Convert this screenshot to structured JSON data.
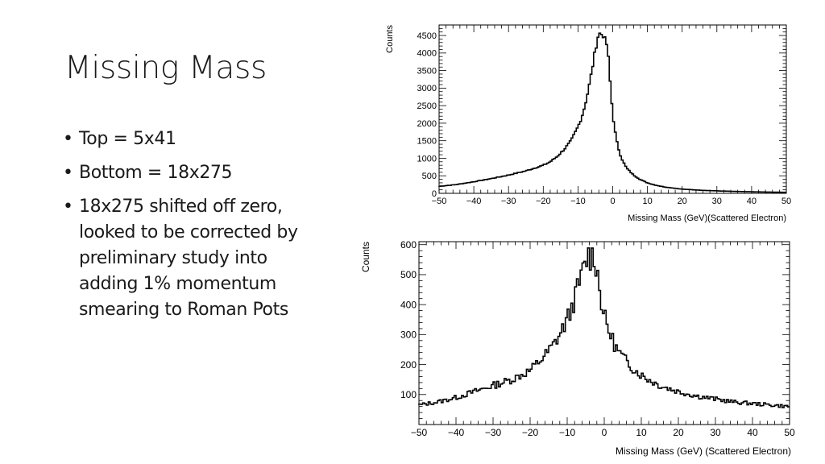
{
  "slide": {
    "title": "Missing Mass",
    "bullets": [
      "Top = 5x41",
      "Bottom = 18x275",
      "18x275 shifted off zero, looked to be corrected by preliminary study into adding 1% momentum smearing to Roman Pots"
    ]
  },
  "chart_data": [
    {
      "type": "line",
      "title": "",
      "xlabel": "Missing Mass (GeV)(Scattered Electron)",
      "ylabel": "Counts",
      "xlim": [
        -50,
        50
      ],
      "ylim": [
        0,
        4800
      ],
      "xticks": [
        -50,
        -40,
        -30,
        -20,
        -10,
        0,
        10,
        20,
        30,
        40,
        50
      ],
      "yticks": [
        0,
        500,
        1000,
        1500,
        2000,
        2500,
        3000,
        3500,
        4000,
        4500
      ],
      "grid": false,
      "legend": "none",
      "style": "step",
      "line_color": "#000000",
      "x": [
        -50,
        -45,
        -40,
        -35,
        -30,
        -25,
        -20,
        -18,
        -16,
        -14,
        -12,
        -10,
        -9,
        -8,
        -7,
        -6,
        -5,
        -4.5,
        -4,
        -3.5,
        -3,
        -2.5,
        -2,
        -1.5,
        -1,
        0,
        1,
        2,
        3,
        4,
        6,
        8,
        10,
        12,
        15,
        20,
        25,
        30,
        35,
        40,
        45,
        50
      ],
      "y": [
        200,
        250,
        330,
        420,
        520,
        640,
        800,
        900,
        1050,
        1250,
        1500,
        1900,
        2150,
        2500,
        2950,
        3500,
        4100,
        4350,
        4600,
        4500,
        4580,
        4450,
        4300,
        4200,
        3500,
        2250,
        1550,
        1150,
        900,
        720,
        520,
        390,
        300,
        240,
        180,
        120,
        90,
        70,
        55,
        45,
        35,
        30
      ]
    },
    {
      "type": "line",
      "title": "",
      "xlabel": "Missing Mass (GeV) (Scattered Electron)",
      "ylabel": "Counts",
      "xlim": [
        -50,
        50
      ],
      "ylim": [
        0,
        610
      ],
      "xticks": [
        -50,
        -40,
        -30,
        -20,
        -10,
        0,
        10,
        20,
        30,
        40,
        50
      ],
      "yticks": [
        100,
        200,
        300,
        400,
        500,
        600
      ],
      "grid": false,
      "legend": "none",
      "style": "step",
      "line_color": "#000000",
      "x": [
        -50,
        -45,
        -40,
        -35,
        -30,
        -25,
        -20,
        -18,
        -16,
        -14,
        -12,
        -10,
        -9,
        -8,
        -7,
        -6,
        -5,
        -4.5,
        -4,
        -3.5,
        -3,
        -2.5,
        -2,
        -1.5,
        -1,
        0,
        1,
        2,
        3,
        4,
        6,
        8,
        10,
        12,
        15,
        20,
        25,
        30,
        35,
        40,
        45,
        50
      ],
      "y": [
        65,
        75,
        90,
        110,
        130,
        150,
        180,
        205,
        230,
        260,
        300,
        350,
        380,
        420,
        460,
        500,
        540,
        560,
        570,
        550,
        575,
        555,
        520,
        480,
        430,
        360,
        320,
        290,
        260,
        240,
        210,
        185,
        165,
        150,
        130,
        110,
        95,
        85,
        75,
        70,
        65,
        60
      ]
    }
  ]
}
